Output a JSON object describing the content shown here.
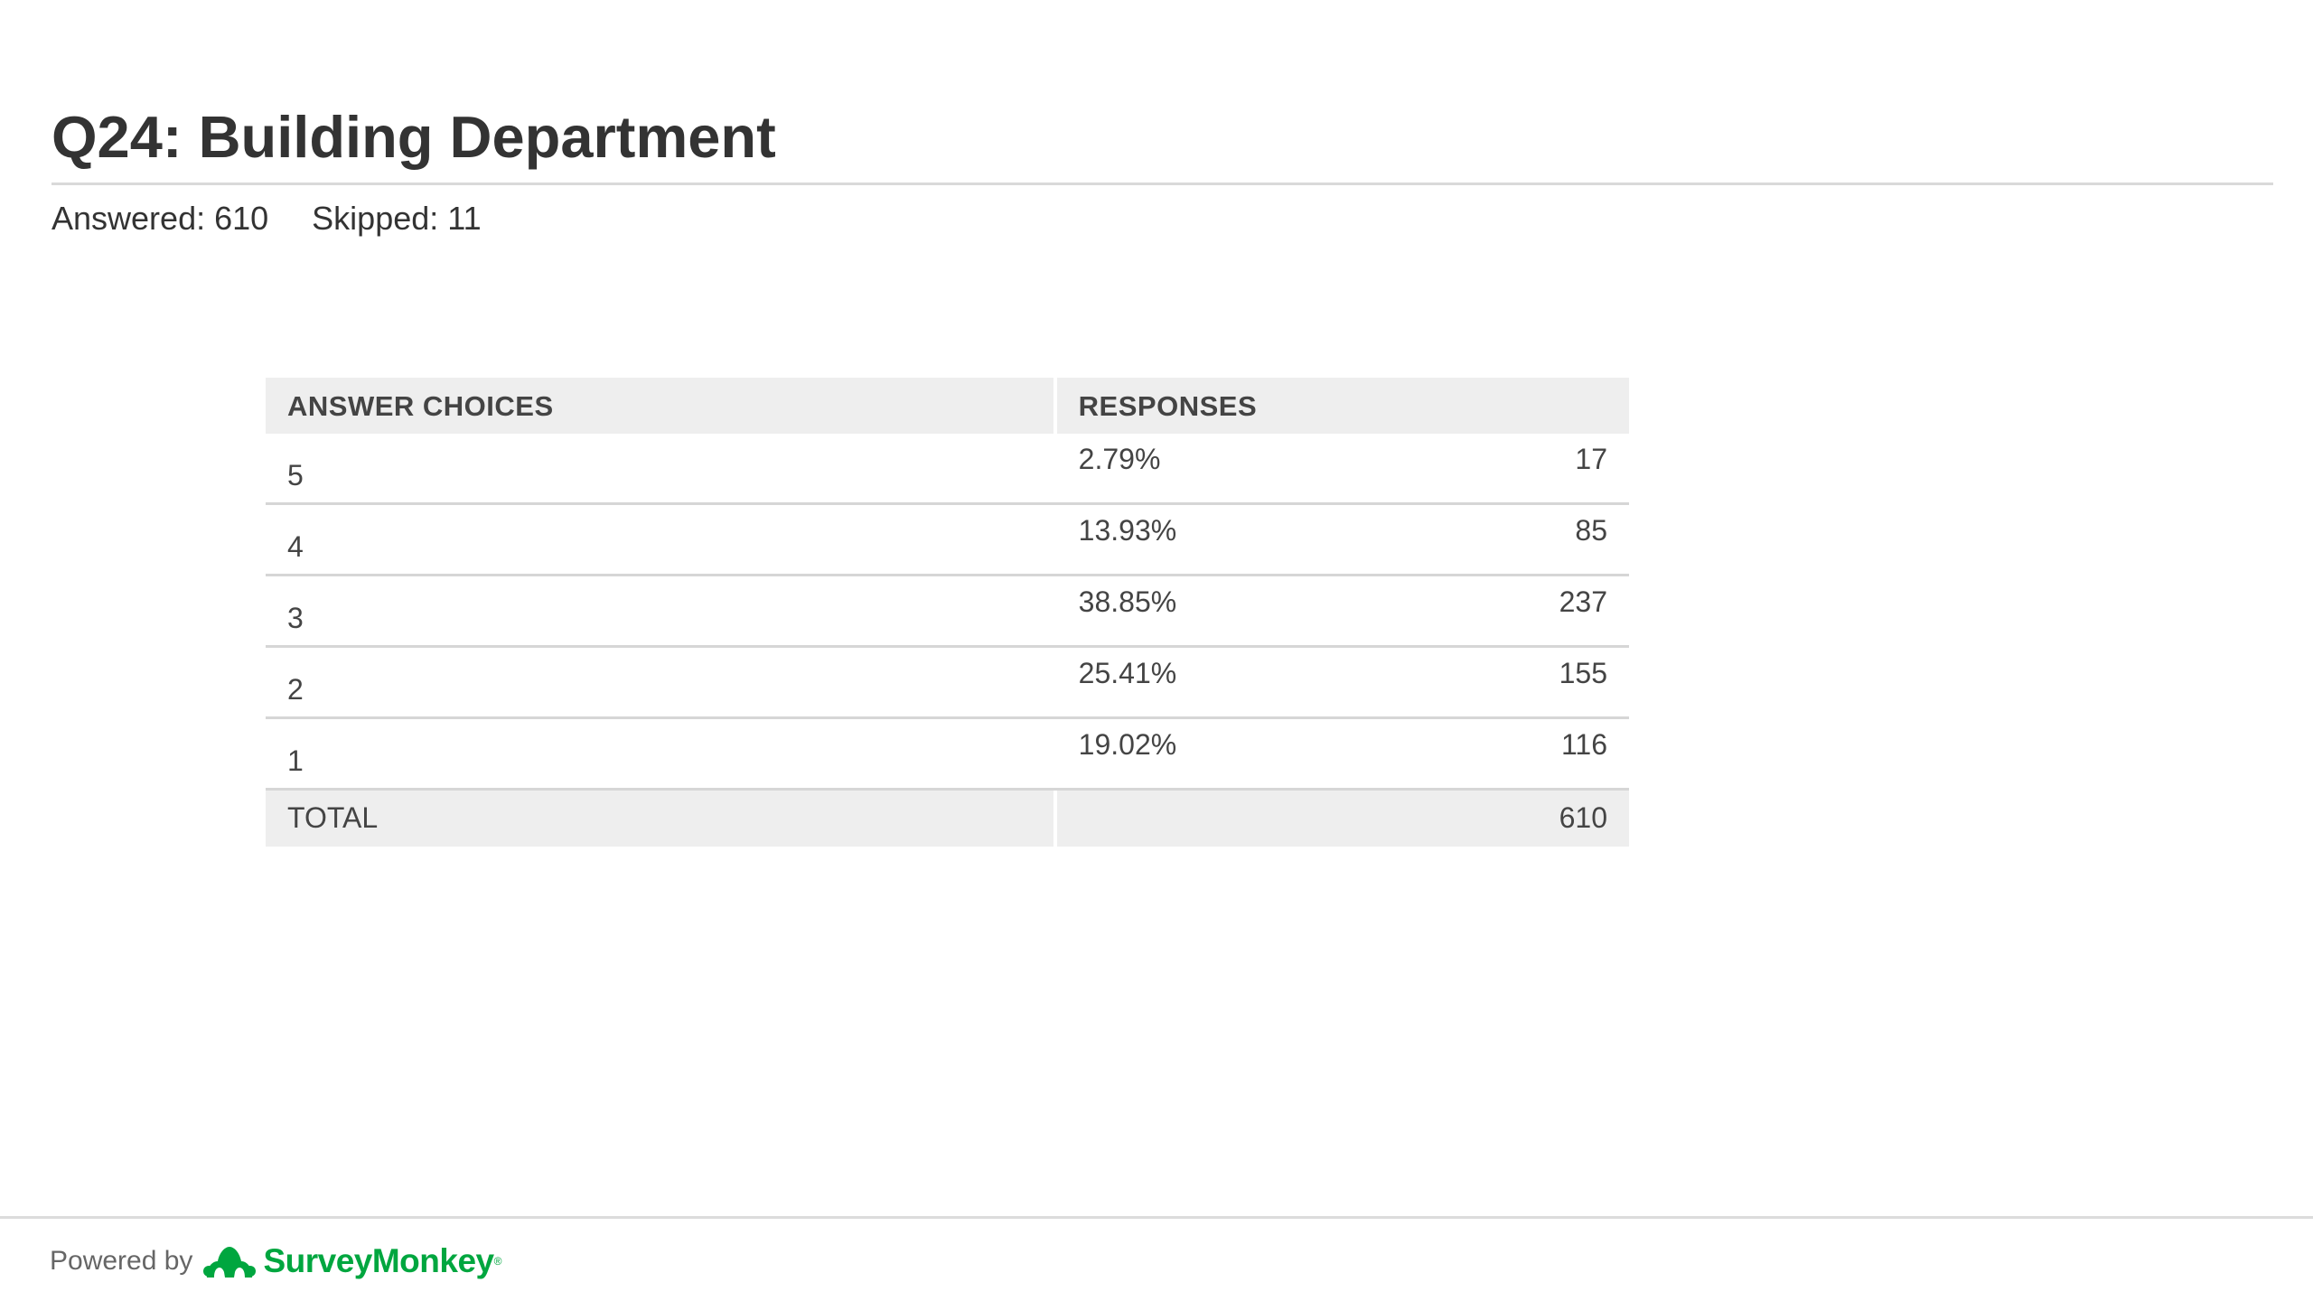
{
  "question": {
    "title": "Q24: Building Department",
    "answered": "Answered: 610",
    "skipped": "Skipped: 11"
  },
  "table": {
    "headers": {
      "choices": "ANSWER CHOICES",
      "responses": "RESPONSES"
    },
    "rows": [
      {
        "choice": "5",
        "percent": "2.79%",
        "count": "17"
      },
      {
        "choice": "4",
        "percent": "13.93%",
        "count": "85"
      },
      {
        "choice": "3",
        "percent": "38.85%",
        "count": "237"
      },
      {
        "choice": "2",
        "percent": "25.41%",
        "count": "155"
      },
      {
        "choice": "1",
        "percent": "19.02%",
        "count": "116"
      }
    ],
    "total": {
      "label": "TOTAL",
      "count": "610"
    }
  },
  "footer": {
    "powered_by": "Powered by",
    "brand": "SurveyMonkey",
    "brand_mark": "®",
    "brand_color": "#00a63f",
    "logo_icon": "surveymonkey-logo-icon"
  }
}
